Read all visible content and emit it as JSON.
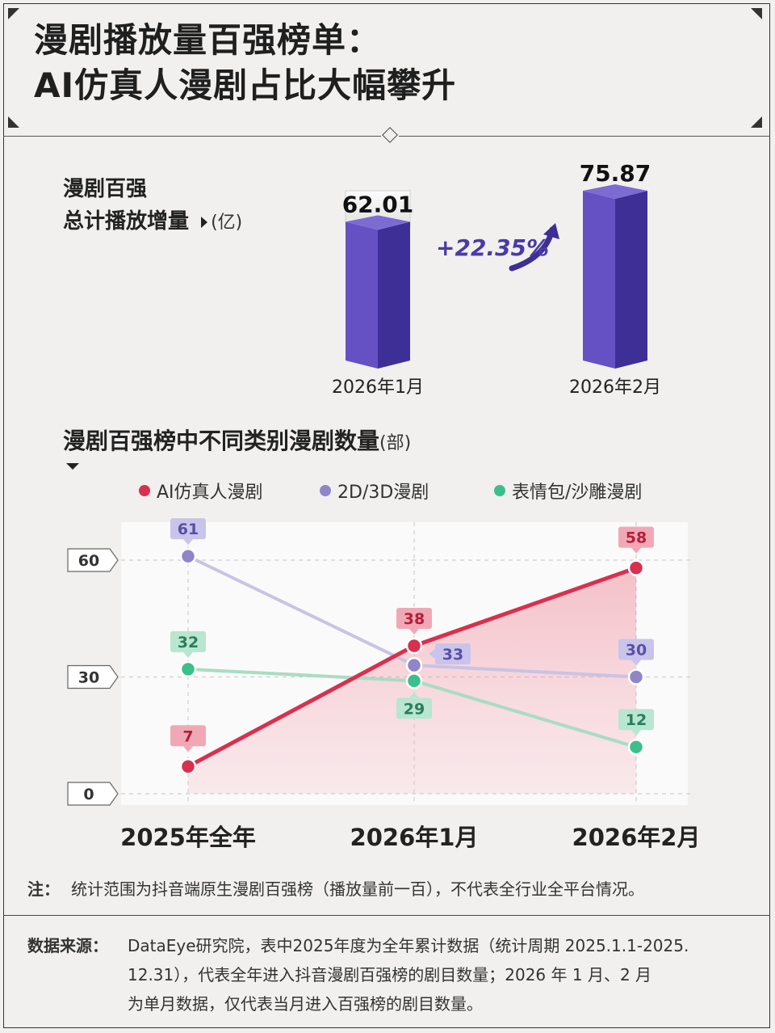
{
  "title": {
    "line1": "漫剧播放量百强榜单：",
    "line2": "AI仿真人漫剧占比大幅攀升"
  },
  "section1": {
    "label_line1": "漫剧百强",
    "label_line2": "总计播放增量",
    "unit": "(亿)",
    "growth_label": "+22.35%"
  },
  "section2": {
    "label": "漫剧百强榜中不同类别漫剧数量",
    "unit": "(部)"
  },
  "colors": {
    "ai": "#d9304f",
    "twod": "#8f86c9",
    "meme": "#3bbf8c",
    "bar_front": "#6551c4",
    "bar_side": "#3e2f96"
  },
  "chart_data": [
    {
      "type": "bar",
      "categories": [
        "2026年1月",
        "2026年2月"
      ],
      "values": [
        62.01,
        75.87
      ],
      "value_labels": [
        "62.01",
        "75.87"
      ],
      "ylim": [
        0,
        75.87
      ]
    },
    {
      "type": "line",
      "categories": [
        "2025年全年",
        "2026年1月",
        "2026年2月"
      ],
      "ylim": [
        0,
        61
      ],
      "yticks": [
        0,
        30,
        60
      ],
      "ytick_labels": [
        "0",
        "30",
        "60"
      ],
      "series": [
        {
          "name": "AI仿真人漫剧",
          "values": [
            7,
            38,
            58
          ],
          "color": "#d9304f",
          "area": true
        },
        {
          "name": "2D/3D漫剧",
          "values": [
            61,
            33,
            30
          ],
          "color": "#8f86c9"
        },
        {
          "name": "表情包/沙雕漫剧",
          "values": [
            32,
            29,
            12
          ],
          "color": "#3bbf8c"
        }
      ],
      "legend": "top",
      "grid": true
    }
  ],
  "note": {
    "label": "注：",
    "text": "统计范围为抖音端原生漫剧百强榜（播放量前一百），不代表全行业全平台情况。"
  },
  "source": {
    "label": "数据来源：",
    "line1": "DataEye研究院，表中2025年度为全年累计数据（统计周期 2025.1.1-2025.",
    "line2": "12.31），代表全年进入抖音漫剧百强榜的剧目数量；2026 年 1 月、2 月",
    "line3": "为单月数据，仅代表当月进入百强榜的剧目数量。"
  }
}
